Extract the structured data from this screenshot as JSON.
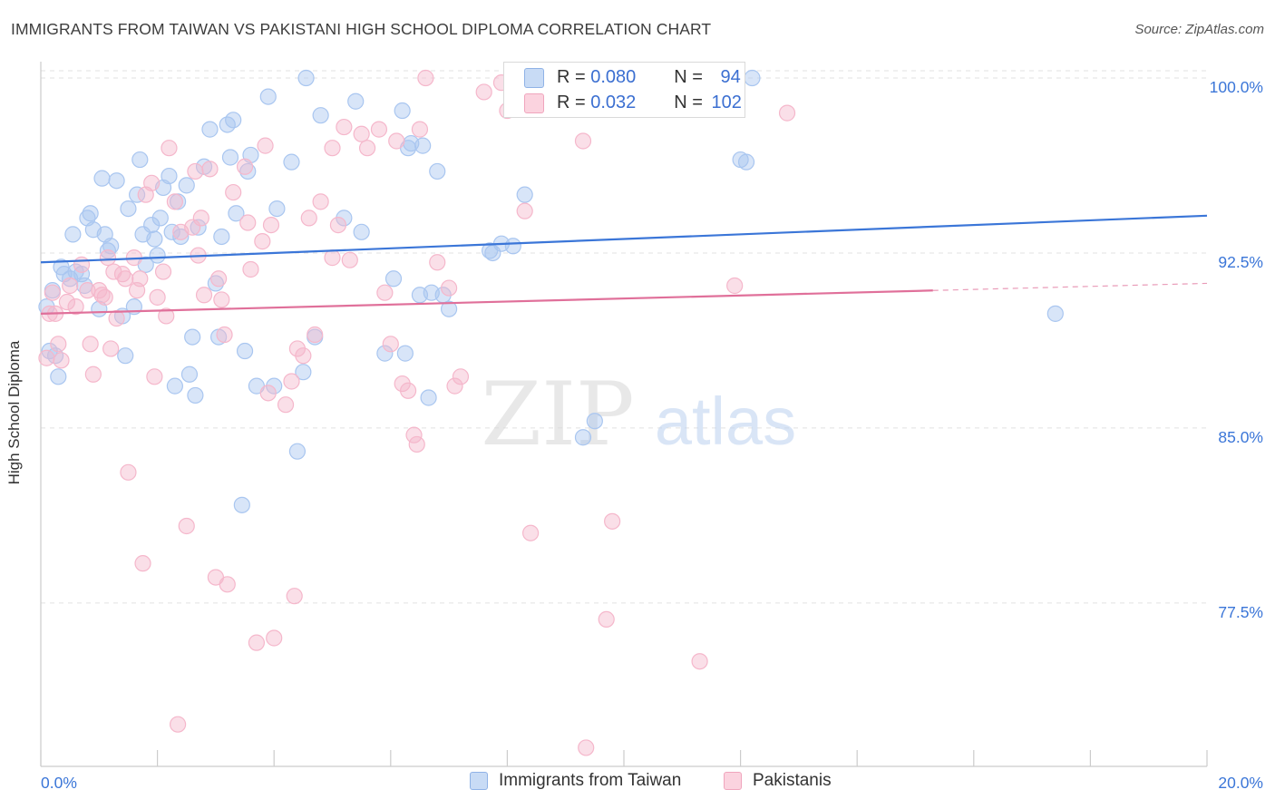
{
  "title": "IMMIGRANTS FROM TAIWAN VS PAKISTANI HIGH SCHOOL DIPLOMA CORRELATION CHART",
  "source": "Source: ZipAtlas.com",
  "watermark": {
    "zip": "ZIP",
    "atlas": "atlas"
  },
  "stats": [
    {
      "r_label": "R =",
      "r_value": "0.080",
      "n_label": "N =",
      "n_value": "94",
      "color": "#a9c6f0"
    },
    {
      "r_label": "R =",
      "r_value": "0.032",
      "n_label": "N =",
      "n_value": "102",
      "color": "#f5b7cb"
    }
  ],
  "legend": [
    {
      "label": "Immigrants from Taiwan",
      "color": "#a9c6f0"
    },
    {
      "label": "Pakistanis",
      "color": "#f5b7cb"
    }
  ],
  "chart_data": {
    "type": "scatter",
    "title": "IMMIGRANTS FROM TAIWAN VS PAKISTANI HIGH SCHOOL DIPLOMA CORRELATION CHART",
    "xlabel": "",
    "ylabel": "High School Diploma",
    "xlim": [
      0,
      20
    ],
    "ylim": [
      70.5,
      100.7
    ],
    "x_ticks": [
      "0.0%",
      "20.0%"
    ],
    "y_ticks": [
      {
        "value": 100.0,
        "label": "100.0%"
      },
      {
        "value": 92.5,
        "label": "92.5%"
      },
      {
        "value": 85.0,
        "label": "85.0%"
      },
      {
        "value": 77.5,
        "label": "77.5%"
      }
    ],
    "grid": true,
    "legend_position": "bottom",
    "series": [
      {
        "name": "Immigrants from Taiwan",
        "color": "#3b76d8",
        "fill": "#a9c6f0",
        "trend": {
          "x0": 0.0,
          "y0": 92.1,
          "x1": 20.0,
          "y1": 94.1,
          "solid_until": 20.0
        },
        "points": [
          [
            0.1,
            90.2
          ],
          [
            0.15,
            88.3
          ],
          [
            0.2,
            90.9
          ],
          [
            0.25,
            88.1
          ],
          [
            0.3,
            87.2
          ],
          [
            0.35,
            91.9
          ],
          [
            0.4,
            91.6
          ],
          [
            0.5,
            91.4
          ],
          [
            0.55,
            93.3
          ],
          [
            0.6,
            91.7
          ],
          [
            0.7,
            91.6
          ],
          [
            0.75,
            91.1
          ],
          [
            0.8,
            94.0
          ],
          [
            0.85,
            94.2
          ],
          [
            0.9,
            93.5
          ],
          [
            1.0,
            90.1
          ],
          [
            1.05,
            95.7
          ],
          [
            1.1,
            93.3
          ],
          [
            1.15,
            92.6
          ],
          [
            1.2,
            92.8
          ],
          [
            1.3,
            95.6
          ],
          [
            1.4,
            89.8
          ],
          [
            1.45,
            88.1
          ],
          [
            1.5,
            94.4
          ],
          [
            1.6,
            90.2
          ],
          [
            1.65,
            95.0
          ],
          [
            1.7,
            96.5
          ],
          [
            1.75,
            93.3
          ],
          [
            1.8,
            92.0
          ],
          [
            1.9,
            93.7
          ],
          [
            1.95,
            93.1
          ],
          [
            2.0,
            92.4
          ],
          [
            2.05,
            94.0
          ],
          [
            2.1,
            95.3
          ],
          [
            2.2,
            95.8
          ],
          [
            2.25,
            93.4
          ],
          [
            2.3,
            86.8
          ],
          [
            2.35,
            94.7
          ],
          [
            2.4,
            93.2
          ],
          [
            2.5,
            95.4
          ],
          [
            2.55,
            87.3
          ],
          [
            2.6,
            88.9
          ],
          [
            2.65,
            86.4
          ],
          [
            2.7,
            93.6
          ],
          [
            2.8,
            96.2
          ],
          [
            2.9,
            97.8
          ],
          [
            3.0,
            91.2
          ],
          [
            3.05,
            88.9
          ],
          [
            3.1,
            93.2
          ],
          [
            3.2,
            98.0
          ],
          [
            3.25,
            96.6
          ],
          [
            3.3,
            98.2
          ],
          [
            3.35,
            94.2
          ],
          [
            3.45,
            81.7
          ],
          [
            3.5,
            88.3
          ],
          [
            3.55,
            96.0
          ],
          [
            3.6,
            96.7
          ],
          [
            3.7,
            86.8
          ],
          [
            3.9,
            99.2
          ],
          [
            4.0,
            86.8
          ],
          [
            4.05,
            94.4
          ],
          [
            4.3,
            96.4
          ],
          [
            4.4,
            84.0
          ],
          [
            4.5,
            87.4
          ],
          [
            4.55,
            100.0
          ],
          [
            4.7,
            88.9
          ],
          [
            4.8,
            98.4
          ],
          [
            5.2,
            94.0
          ],
          [
            5.4,
            99.0
          ],
          [
            5.5,
            93.4
          ],
          [
            5.9,
            88.2
          ],
          [
            6.05,
            91.4
          ],
          [
            6.2,
            98.6
          ],
          [
            6.25,
            88.2
          ],
          [
            6.3,
            97.0
          ],
          [
            6.35,
            97.2
          ],
          [
            6.5,
            90.7
          ],
          [
            6.55,
            97.1
          ],
          [
            6.65,
            86.3
          ],
          [
            6.7,
            90.8
          ],
          [
            6.8,
            96.0
          ],
          [
            6.9,
            90.7
          ],
          [
            7.0,
            90.1
          ],
          [
            7.7,
            92.6
          ],
          [
            7.75,
            92.5
          ],
          [
            7.9,
            92.9
          ],
          [
            8.1,
            92.8
          ],
          [
            8.3,
            95.0
          ],
          [
            9.3,
            84.6
          ],
          [
            9.5,
            85.3
          ],
          [
            12.0,
            96.5
          ],
          [
            12.1,
            96.4
          ],
          [
            17.4,
            89.9
          ],
          [
            12.2,
            100.0
          ]
        ]
      },
      {
        "name": "Pakistanis",
        "color": "#e0709a",
        "fill": "#f5b7cb",
        "trend": {
          "x0": 0.0,
          "y0": 89.9,
          "x1": 20.0,
          "y1": 91.2,
          "solid_until": 15.3
        },
        "points": [
          [
            0.1,
            88.0
          ],
          [
            0.15,
            89.9
          ],
          [
            0.2,
            90.8
          ],
          [
            0.25,
            89.9
          ],
          [
            0.3,
            88.6
          ],
          [
            0.35,
            87.9
          ],
          [
            0.45,
            90.4
          ],
          [
            0.5,
            91.1
          ],
          [
            0.6,
            90.2
          ],
          [
            0.7,
            92.0
          ],
          [
            0.8,
            90.9
          ],
          [
            0.85,
            88.6
          ],
          [
            0.9,
            87.3
          ],
          [
            1.0,
            90.9
          ],
          [
            1.05,
            90.7
          ],
          [
            1.1,
            90.6
          ],
          [
            1.15,
            92.3
          ],
          [
            1.2,
            88.4
          ],
          [
            1.25,
            91.7
          ],
          [
            1.3,
            89.7
          ],
          [
            1.4,
            91.6
          ],
          [
            1.45,
            91.4
          ],
          [
            1.5,
            83.1
          ],
          [
            1.6,
            92.3
          ],
          [
            1.65,
            90.9
          ],
          [
            1.7,
            91.4
          ],
          [
            1.75,
            79.2
          ],
          [
            1.8,
            95.0
          ],
          [
            1.9,
            95.5
          ],
          [
            1.95,
            87.2
          ],
          [
            2.0,
            90.6
          ],
          [
            2.1,
            91.7
          ],
          [
            2.15,
            89.8
          ],
          [
            2.2,
            97.0
          ],
          [
            2.3,
            94.7
          ],
          [
            2.35,
            72.3
          ],
          [
            2.4,
            93.4
          ],
          [
            2.5,
            80.8
          ],
          [
            2.6,
            93.6
          ],
          [
            2.65,
            96.0
          ],
          [
            2.7,
            92.4
          ],
          [
            2.75,
            94.0
          ],
          [
            2.8,
            90.7
          ],
          [
            2.9,
            96.1
          ],
          [
            3.0,
            78.6
          ],
          [
            3.05,
            91.4
          ],
          [
            3.1,
            90.5
          ],
          [
            3.15,
            89.0
          ],
          [
            3.2,
            78.3
          ],
          [
            3.3,
            95.1
          ],
          [
            3.5,
            96.2
          ],
          [
            3.55,
            93.8
          ],
          [
            3.6,
            91.8
          ],
          [
            3.7,
            75.8
          ],
          [
            3.8,
            93.0
          ],
          [
            3.85,
            97.1
          ],
          [
            3.9,
            86.5
          ],
          [
            3.95,
            93.7
          ],
          [
            4.0,
            76.0
          ],
          [
            4.2,
            86.0
          ],
          [
            4.3,
            87.0
          ],
          [
            4.35,
            77.8
          ],
          [
            4.4,
            88.4
          ],
          [
            4.5,
            88.1
          ],
          [
            4.6,
            94.0
          ],
          [
            4.7,
            89.0
          ],
          [
            4.8,
            94.7
          ],
          [
            5.0,
            92.3
          ],
          [
            5.1,
            93.7
          ],
          [
            5.2,
            97.9
          ],
          [
            5.3,
            92.2
          ],
          [
            5.5,
            97.6
          ],
          [
            5.6,
            97.0
          ],
          [
            5.8,
            97.8
          ],
          [
            5.9,
            90.8
          ],
          [
            6.0,
            88.6
          ],
          [
            6.1,
            97.3
          ],
          [
            6.2,
            86.9
          ],
          [
            6.3,
            86.6
          ],
          [
            6.4,
            84.7
          ],
          [
            6.45,
            84.3
          ],
          [
            6.5,
            97.8
          ],
          [
            6.6,
            100.0
          ],
          [
            6.8,
            92.1
          ],
          [
            7.0,
            91.0
          ],
          [
            7.1,
            86.8
          ],
          [
            7.2,
            87.2
          ],
          [
            7.6,
            99.4
          ],
          [
            7.9,
            99.8
          ],
          [
            8.0,
            98.6
          ],
          [
            8.1,
            100.0
          ],
          [
            8.3,
            94.3
          ],
          [
            8.4,
            80.5
          ],
          [
            9.3,
            97.3
          ],
          [
            9.35,
            71.3
          ],
          [
            9.8,
            81.0
          ],
          [
            9.7,
            76.8
          ],
          [
            11.3,
            75.0
          ],
          [
            11.9,
            91.1
          ],
          [
            12.8,
            98.5
          ],
          [
            8.8,
            99.0
          ],
          [
            5.0,
            97.0
          ]
        ]
      }
    ]
  }
}
